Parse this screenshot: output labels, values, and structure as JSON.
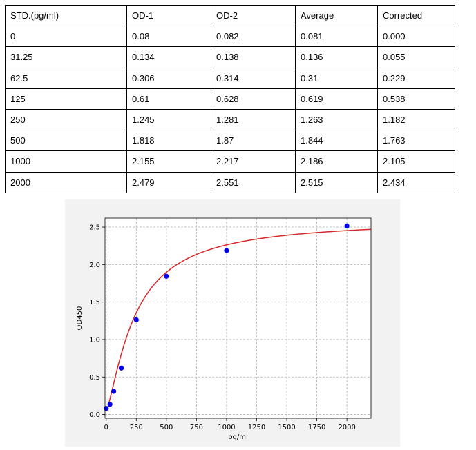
{
  "table": {
    "headers": [
      "STD.(pg/ml)",
      "OD-1",
      "OD-2",
      "Average",
      "Corrected"
    ],
    "rows": [
      [
        "0",
        "0.08",
        "0.082",
        "0.081",
        "0.000"
      ],
      [
        "31.25",
        "0.134",
        "0.138",
        "0.136",
        "0.055"
      ],
      [
        "62.5",
        "0.306",
        "0.314",
        "0.31",
        "0.229"
      ],
      [
        "125",
        "0.61",
        "0.628",
        "0.619",
        "0.538"
      ],
      [
        "250",
        "1.245",
        "1.281",
        "1.263",
        "1.182"
      ],
      [
        "500",
        "1.818",
        "1.87",
        "1.844",
        "1.763"
      ],
      [
        "1000",
        "2.155",
        "2.217",
        "2.186",
        "2.105"
      ],
      [
        "2000",
        "2.479",
        "2.551",
        "2.515",
        "2.434"
      ]
    ]
  },
  "chart_data": {
    "type": "scatter",
    "title": "",
    "xlabel": "pg/ml",
    "ylabel": "OD450",
    "xlim": [
      -10,
      2200
    ],
    "ylim": [
      -0.05,
      2.62
    ],
    "xticks": [
      0,
      250,
      500,
      750,
      1000,
      1250,
      1500,
      1750,
      2000
    ],
    "yticks": [
      0.0,
      0.5,
      1.0,
      1.5,
      2.0,
      2.5
    ],
    "grid": true,
    "series": [
      {
        "x": [
          0,
          31.25,
          62.5,
          125,
          250,
          500,
          1000,
          2000
        ],
        "y": [
          0.081,
          0.136,
          0.31,
          0.619,
          1.263,
          1.844,
          2.186,
          2.515
        ],
        "color": "#0000ee"
      }
    ],
    "fit_curve": {
      "model": "4PL",
      "A": 0.045,
      "B": 1.32,
      "C": 240,
      "D": 2.6,
      "color": "#d62728"
    }
  }
}
